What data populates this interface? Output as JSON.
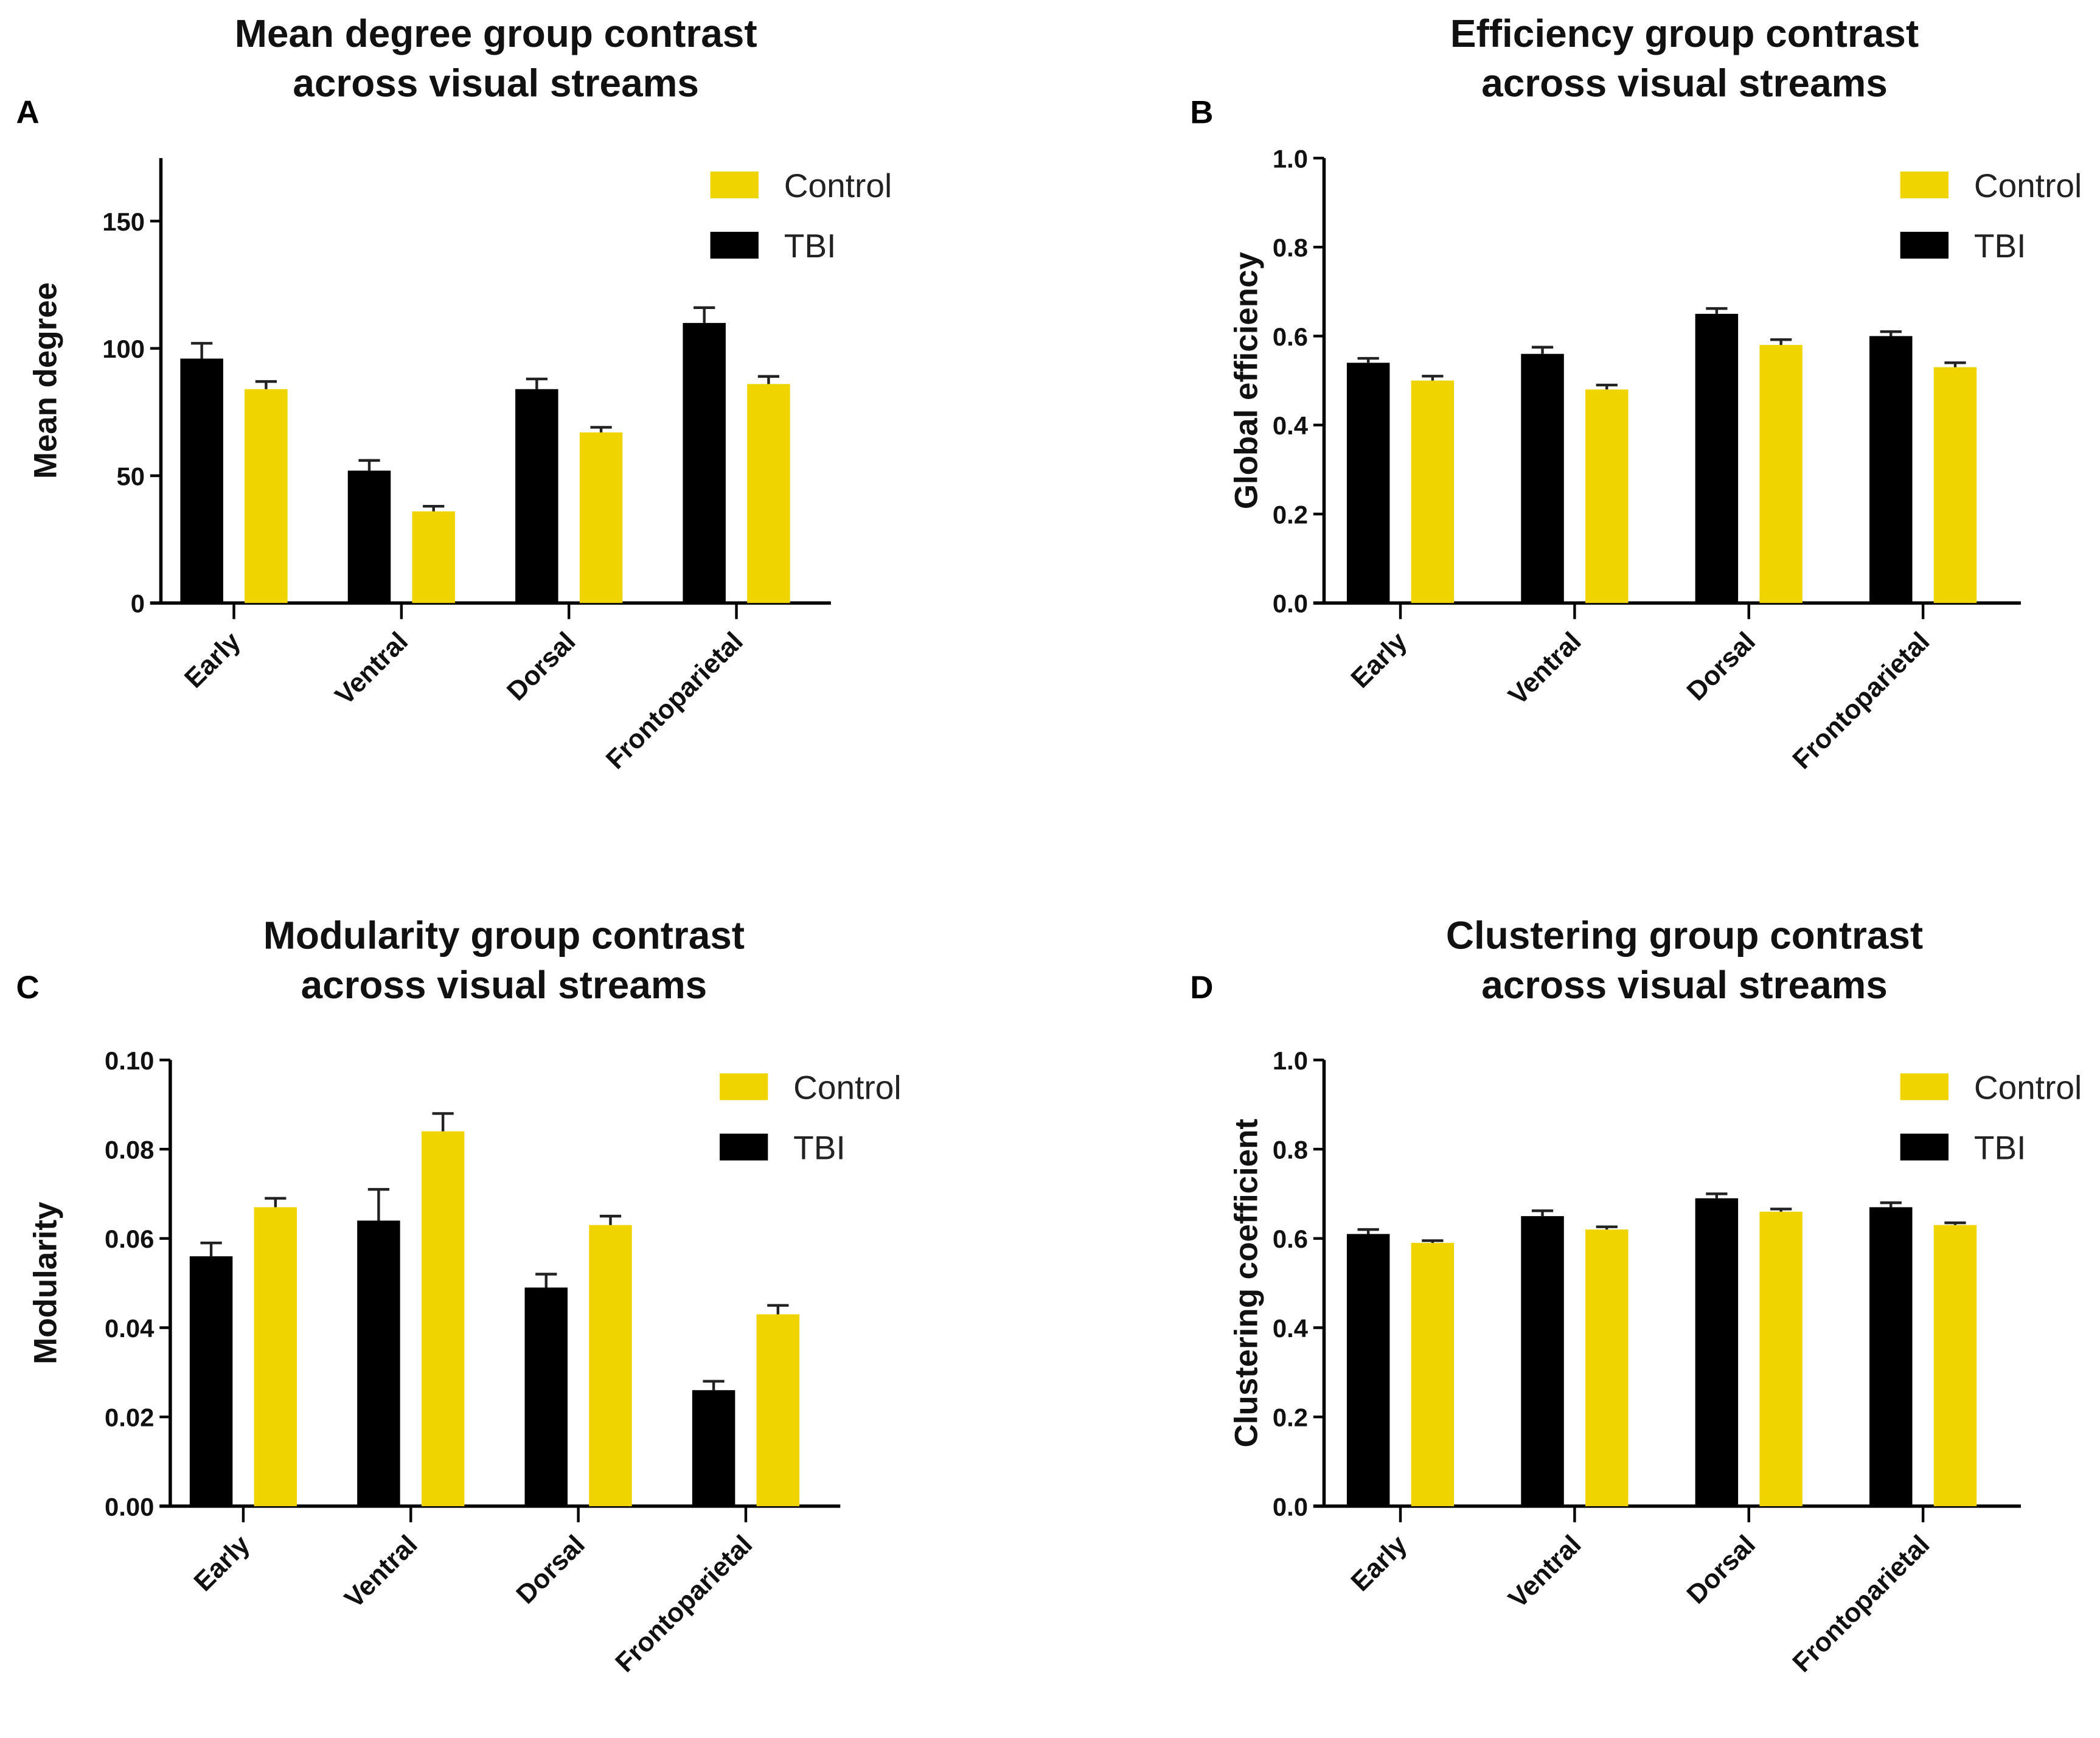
{
  "colors": {
    "Control": "#f0d400",
    "TBI": "#000000"
  },
  "chart_data": [
    {
      "panel": "A",
      "type": "bar",
      "title": [
        "Mean degree group contrast",
        "across visual streams"
      ],
      "ylabel": "Mean degree",
      "xlabel": "",
      "ylim": [
        0,
        175
      ],
      "yticks": [
        0,
        50,
        100,
        150
      ],
      "ytick_labels": [
        "0",
        "50",
        "100",
        "150"
      ],
      "categories": [
        "Early",
        "Ventral",
        "Dorsal",
        "Frontoparietal"
      ],
      "legend": [
        "Control",
        "TBI"
      ],
      "legend_position": "top-right",
      "series": [
        {
          "name": "TBI",
          "values": [
            96,
            52,
            84,
            110
          ],
          "errors": [
            6,
            4,
            4,
            6
          ]
        },
        {
          "name": "Control",
          "values": [
            84,
            36,
            67,
            86
          ],
          "errors": [
            3,
            2,
            2,
            3
          ]
        }
      ]
    },
    {
      "panel": "B",
      "type": "bar",
      "title": [
        "Efficiency group contrast",
        "across visual streams"
      ],
      "ylabel": "Global efficiency",
      "xlabel": "",
      "ylim": [
        0,
        1.0
      ],
      "yticks": [
        0,
        0.2,
        0.4,
        0.6,
        0.8,
        1.0
      ],
      "ytick_labels": [
        "0.0",
        "0.2",
        "0.4",
        "0.6",
        "0.8",
        "1.0"
      ],
      "categories": [
        "Early",
        "Ventral",
        "Dorsal",
        "Frontoparietal"
      ],
      "legend": [
        "Control",
        "TBI"
      ],
      "legend_position": "top-right",
      "series": [
        {
          "name": "TBI",
          "values": [
            0.54,
            0.56,
            0.65,
            0.6
          ],
          "errors": [
            0.01,
            0.015,
            0.012,
            0.01
          ]
        },
        {
          "name": "Control",
          "values": [
            0.5,
            0.48,
            0.58,
            0.53
          ],
          "errors": [
            0.01,
            0.01,
            0.012,
            0.01
          ]
        }
      ]
    },
    {
      "panel": "C",
      "type": "bar",
      "title": [
        "Modularity group contrast",
        "across visual streams"
      ],
      "ylabel": "Modularity",
      "xlabel": "",
      "ylim": [
        0,
        0.1
      ],
      "yticks": [
        0,
        0.02,
        0.04,
        0.06,
        0.08,
        0.1
      ],
      "ytick_labels": [
        "0.00",
        "0.02",
        "0.04",
        "0.06",
        "0.08",
        "0.10"
      ],
      "categories": [
        "Early",
        "Ventral",
        "Dorsal",
        "Frontoparietal"
      ],
      "legend": [
        "Control",
        "TBI"
      ],
      "legend_position": "top-right",
      "series": [
        {
          "name": "TBI",
          "values": [
            0.056,
            0.064,
            0.049,
            0.026
          ],
          "errors": [
            0.003,
            0.007,
            0.003,
            0.002
          ]
        },
        {
          "name": "Control",
          "values": [
            0.067,
            0.084,
            0.063,
            0.043
          ],
          "errors": [
            0.002,
            0.004,
            0.002,
            0.002
          ]
        }
      ]
    },
    {
      "panel": "D",
      "type": "bar",
      "title": [
        "Clustering group contrast",
        "across visual streams"
      ],
      "ylabel": "Clustering coefficient",
      "xlabel": "",
      "ylim": [
        0,
        1.0
      ],
      "yticks": [
        0,
        0.2,
        0.4,
        0.6,
        0.8,
        1.0
      ],
      "ytick_labels": [
        "0.0",
        "0.2",
        "0.4",
        "0.6",
        "0.8",
        "1.0"
      ],
      "categories": [
        "Early",
        "Ventral",
        "Dorsal",
        "Frontoparietal"
      ],
      "legend": [
        "Control",
        "TBI"
      ],
      "legend_position": "top-right",
      "series": [
        {
          "name": "TBI",
          "values": [
            0.61,
            0.65,
            0.69,
            0.67
          ],
          "errors": [
            0.01,
            0.012,
            0.01,
            0.01
          ]
        },
        {
          "name": "Control",
          "values": [
            0.59,
            0.62,
            0.66,
            0.63
          ],
          "errors": [
            0.005,
            0.006,
            0.006,
            0.005
          ]
        }
      ]
    }
  ]
}
